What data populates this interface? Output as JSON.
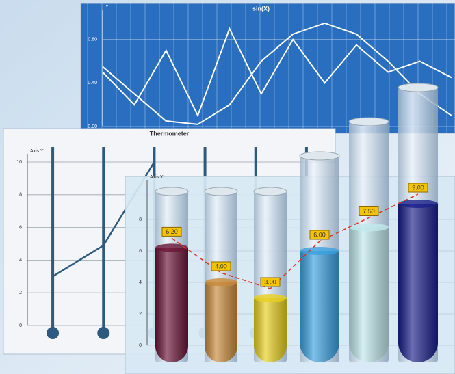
{
  "chart_data": [
    {
      "type": "line",
      "title": "sin(X)",
      "y_label": "Y",
      "ylim": [
        0,
        1
      ],
      "yticks": [
        {
          "value": 0,
          "label": "0.00"
        },
        {
          "value": 0.4,
          "label": "0.40"
        },
        {
          "value": 0.8,
          "label": "0.80"
        }
      ],
      "grid": true,
      "series": [
        {
          "color": "#ffffff",
          "values": [
            0.55,
            0.3,
            0.05,
            0.02,
            0.2,
            0.6,
            0.85,
            0.95,
            0.85,
            0.6,
            0.3,
            0.1
          ]
        },
        {
          "color": "#ffffff",
          "values": [
            0.5,
            0.2,
            0.7,
            0.1,
            0.9,
            0.3,
            0.8,
            0.4,
            0.75,
            0.5,
            0.6,
            0.45
          ]
        }
      ]
    },
    {
      "type": "thermometer",
      "title": "Thermometer",
      "y_label": "Axis Y",
      "categories": [
        null,
        null,
        null,
        null,
        null,
        null
      ],
      "values": [
        3,
        4.9,
        10,
        null,
        null,
        null
      ],
      "color": "#2d5a80",
      "ylim": [
        0,
        10
      ],
      "yticks": [
        0,
        2,
        4,
        6,
        8,
        10
      ],
      "grid": true
    },
    {
      "type": "cylinder",
      "y_label": "Axis Y",
      "categories": [
        null,
        null,
        null,
        null,
        null,
        null
      ],
      "values": [
        6.2,
        4,
        3,
        6,
        7.5,
        9
      ],
      "value_labels": [
        "6.20",
        "4.00",
        "3.00",
        "6.00",
        "7.50",
        "9.00"
      ],
      "colors": [
        "#6a1436",
        "#c98a3a",
        "#e8d020",
        "#3aa0e0",
        "#bfe8ec",
        "#1a1f8a"
      ],
      "ylim": [
        0,
        10
      ],
      "yticks": [
        0,
        2,
        4,
        6,
        8
      ],
      "grid": true
    }
  ]
}
